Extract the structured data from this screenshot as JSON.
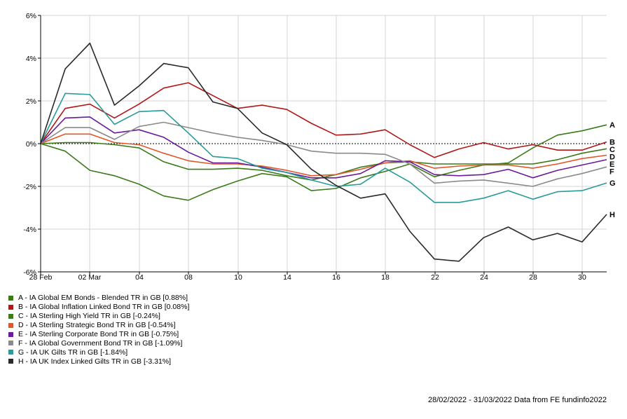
{
  "chart_data": {
    "type": "line",
    "x_ticks": [
      "28 Feb",
      "02 Mar",
      "04",
      "08",
      "10",
      "14",
      "16",
      "18",
      "22",
      "24",
      "28",
      "30"
    ],
    "y_ticks": [
      "6%",
      "4%",
      "2%",
      "0%",
      "-2%",
      "-4%",
      "-6%"
    ],
    "ylim": [
      -6,
      6
    ],
    "grid": true,
    "zero_line": "dashed",
    "x": [
      "28 Feb",
      "01 Mar",
      "02 Mar",
      "03 Mar",
      "04 Mar",
      "07 Mar",
      "08 Mar",
      "09 Mar",
      "10 Mar",
      "11 Mar",
      "14 Mar",
      "15 Mar",
      "16 Mar",
      "17 Mar",
      "18 Mar",
      "21 Mar",
      "22 Mar",
      "23 Mar",
      "24 Mar",
      "25 Mar",
      "28 Mar",
      "29 Mar",
      "30 Mar",
      "31 Mar"
    ],
    "series": [
      {
        "name": "A - IA Global EM Bonds - Blended TR in GB [0.88%]",
        "tag": "A",
        "color": "#3a7a1a",
        "values": [
          0,
          -0.35,
          -1.25,
          -1.5,
          -1.9,
          -2.45,
          -2.65,
          -2.15,
          -1.75,
          -1.4,
          -1.55,
          -2.2,
          -2.1,
          -1.6,
          -1.3,
          -0.95,
          -1.55,
          -1.25,
          -1.0,
          -0.9,
          -0.2,
          0.4,
          0.6,
          0.88
        ]
      },
      {
        "name": "B - IA Global Inflation Linked Bond TR in GB [0.08%]",
        "tag": "B",
        "color": "#b01818",
        "values": [
          0,
          1.65,
          1.85,
          1.2,
          1.85,
          2.6,
          2.85,
          2.25,
          1.65,
          1.8,
          1.6,
          0.95,
          0.4,
          0.45,
          0.65,
          -0.05,
          -0.65,
          -0.25,
          0.05,
          -0.25,
          -0.05,
          -0.3,
          -0.3,
          0.08
        ]
      },
      {
        "name": "C - IA Sterling High Yield TR in GB [-0.24%]",
        "tag": "C",
        "color": "#3a7a1a",
        "values": [
          0,
          0.05,
          0.05,
          -0.05,
          -0.2,
          -0.85,
          -1.2,
          -1.2,
          -1.15,
          -1.25,
          -1.5,
          -1.7,
          -1.45,
          -1.1,
          -0.9,
          -0.85,
          -0.95,
          -0.95,
          -0.95,
          -0.95,
          -0.95,
          -0.75,
          -0.45,
          -0.24
        ]
      },
      {
        "name": "D - IA Sterling Strategic Bond TR in GB [-0.54%]",
        "tag": "D",
        "color": "#e0572a",
        "values": [
          0,
          0.45,
          0.45,
          0.05,
          -0.05,
          -0.45,
          -0.8,
          -0.95,
          -0.95,
          -1.05,
          -1.25,
          -1.5,
          -1.45,
          -1.2,
          -0.9,
          -0.8,
          -1.15,
          -1.05,
          -1.0,
          -1.0,
          -1.15,
          -0.95,
          -0.7,
          -0.54
        ]
      },
      {
        "name": "E - IA Sterling Corporate Bond TR in GB [-0.75%]",
        "tag": "E",
        "color": "#6a1a9a",
        "values": [
          0,
          1.2,
          1.25,
          0.5,
          0.65,
          0.3,
          -0.4,
          -0.9,
          -0.9,
          -1.1,
          -1.35,
          -1.6,
          -1.6,
          -1.4,
          -0.8,
          -0.85,
          -1.45,
          -1.5,
          -1.45,
          -1.2,
          -1.6,
          -1.25,
          -1.0,
          -0.75
        ]
      },
      {
        "name": "F - IA Global Government Bond TR in GB [-1.09%]",
        "tag": "F",
        "color": "#8a8a8a",
        "values": [
          0,
          0.75,
          0.75,
          0.2,
          0.8,
          1.0,
          0.75,
          0.5,
          0.3,
          0.15,
          -0.05,
          -0.35,
          -0.45,
          -0.45,
          -0.5,
          -0.95,
          -1.85,
          -1.75,
          -1.7,
          -1.85,
          -2.0,
          -1.65,
          -1.4,
          -1.09
        ]
      },
      {
        "name": "G - IA UK Gilts TR in GB [-1.84%]",
        "tag": "G",
        "color": "#2a9a9a",
        "values": [
          0,
          2.35,
          2.3,
          0.9,
          1.5,
          1.55,
          0.5,
          -0.6,
          -0.7,
          -1.15,
          -1.35,
          -1.7,
          -2.0,
          -1.9,
          -1.15,
          -1.8,
          -2.75,
          -2.75,
          -2.55,
          -2.2,
          -2.6,
          -2.25,
          -2.2,
          -1.84
        ]
      },
      {
        "name": "H - IA UK Index Linked Gilts TR in GB [-3.31%]",
        "tag": "H",
        "color": "#2a2a2a",
        "values": [
          0,
          3.5,
          4.7,
          1.8,
          2.7,
          3.75,
          3.55,
          1.95,
          1.65,
          0.5,
          -0.05,
          -1.2,
          -1.95,
          -2.55,
          -2.35,
          -4.1,
          -5.4,
          -5.5,
          -4.4,
          -3.9,
          -4.5,
          -4.2,
          -4.6,
          -3.31
        ]
      }
    ]
  },
  "footer": {
    "text": "28/02/2022 - 31/03/2022 Data from FE fundinfo2022"
  }
}
